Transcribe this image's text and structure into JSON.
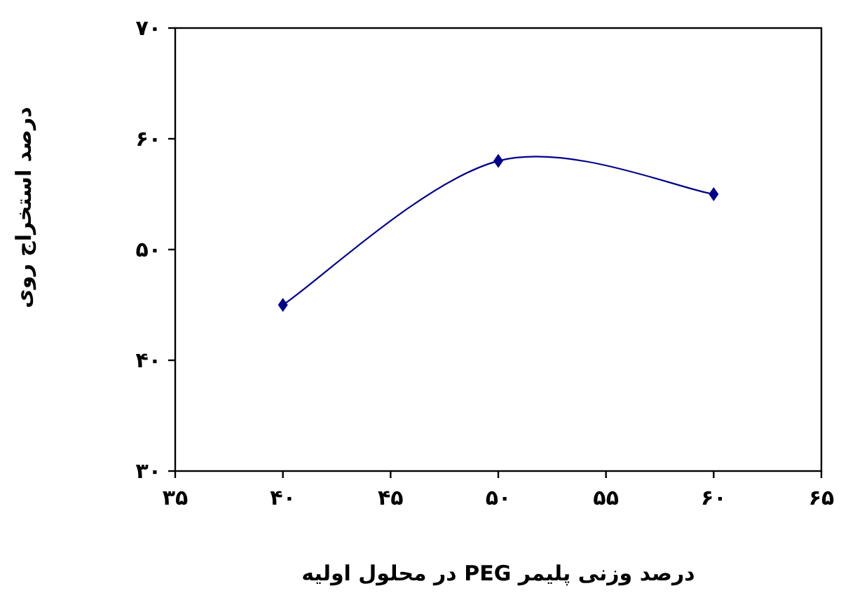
{
  "chart_data": {
    "type": "line",
    "xlabel": "درصد وزنی پلیمر PEG در محلول اولیه",
    "ylabel": "درصد استخراج روی",
    "x": [
      40,
      50,
      60
    ],
    "series": [
      {
        "color": "#00008b",
        "values": [
          45,
          58,
          55
        ]
      }
    ],
    "marker": "diamond",
    "line_style": "solid",
    "grid": false,
    "xlim": [
      35,
      65
    ],
    "ylim": [
      30,
      70
    ],
    "xticks": [
      {
        "value": 35,
        "label": "۳۵"
      },
      {
        "value": 40,
        "label": "۴۰"
      },
      {
        "value": 45,
        "label": "۴۵"
      },
      {
        "value": 50,
        "label": "۵۰"
      },
      {
        "value": 55,
        "label": "۵۵"
      },
      {
        "value": 60,
        "label": "۶۰"
      },
      {
        "value": 65,
        "label": "۶۵"
      }
    ],
    "yticks": [
      {
        "value": 30,
        "label": "۳۰"
      },
      {
        "value": 40,
        "label": "۴۰"
      },
      {
        "value": 50,
        "label": "۵۰"
      },
      {
        "value": 60,
        "label": "۶۰"
      },
      {
        "value": 70,
        "label": "۷۰"
      }
    ]
  }
}
